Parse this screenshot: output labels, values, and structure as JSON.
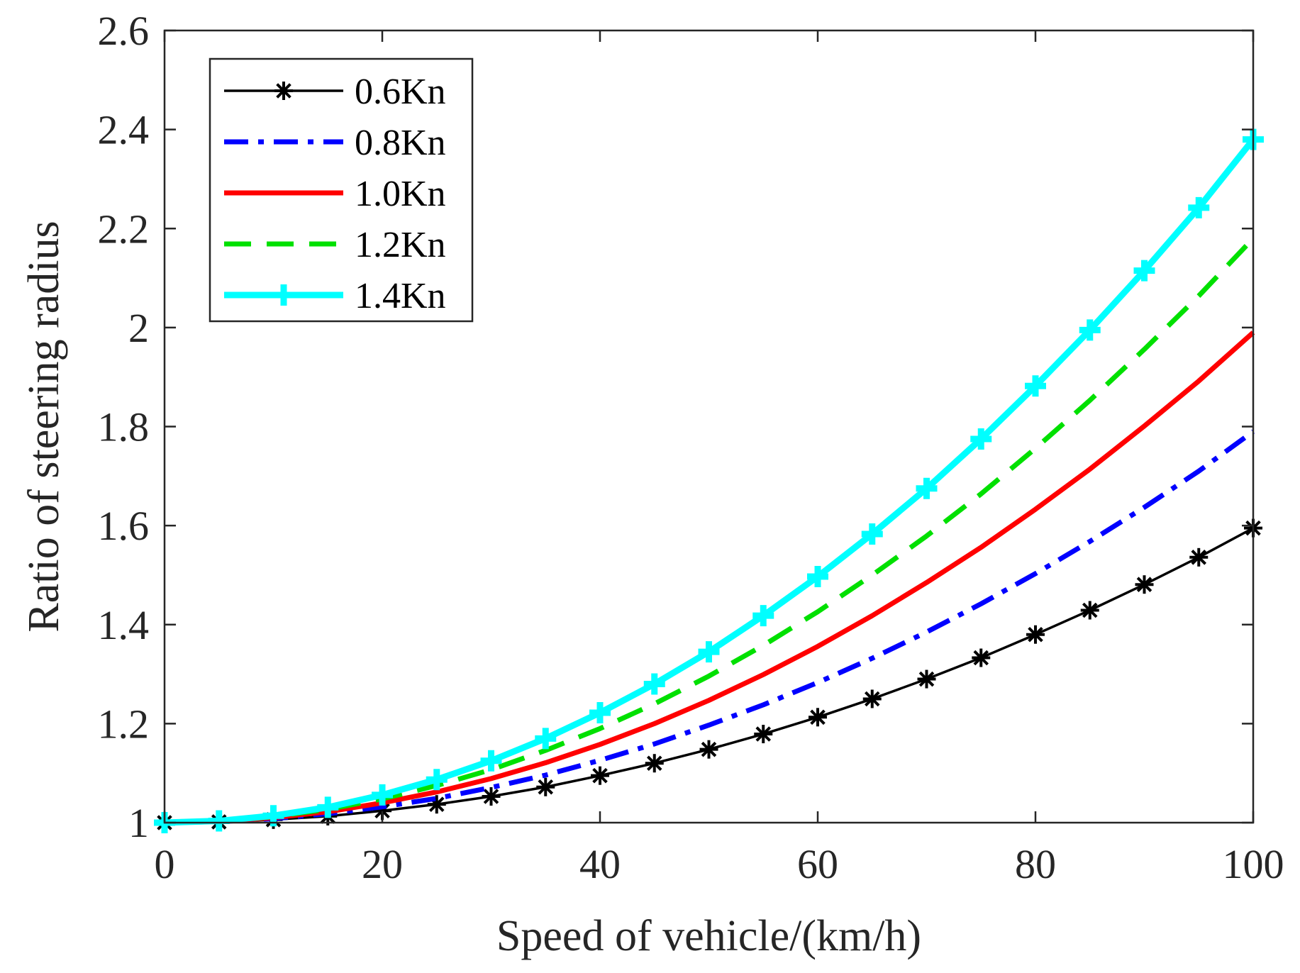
{
  "chart_data": {
    "type": "line",
    "title": "",
    "xlabel": "Speed of vehicle/(km/h)",
    "ylabel": "Ratio of steering radius",
    "xlim": [
      0,
      100
    ],
    "ylim": [
      1,
      2.6
    ],
    "xticks": [
      0,
      20,
      40,
      60,
      80,
      100
    ],
    "xtick_labels": [
      "0",
      "20",
      "40",
      "60",
      "80",
      "100"
    ],
    "yticks": [
      1,
      1.2,
      1.4,
      1.6,
      1.8,
      2,
      2.2,
      2.4,
      2.6
    ],
    "ytick_labels": [
      "1",
      "1.2",
      "1.4",
      "1.6",
      "1.8",
      "2",
      "2.2",
      "2.4",
      "2.6"
    ],
    "grid": false,
    "legend_position": "top-left",
    "x": [
      0,
      5,
      10,
      15,
      20,
      25,
      30,
      35,
      40,
      45,
      50,
      55,
      60,
      65,
      70,
      75,
      80,
      85,
      90,
      95,
      100
    ],
    "series": [
      {
        "name": "0.6Kn",
        "color": "#000000",
        "line_style": "solid",
        "marker": "asterisk",
        "values": [
          1.0,
          1.0015,
          1.006,
          1.013,
          1.024,
          1.037,
          1.053,
          1.072,
          1.095,
          1.12,
          1.148,
          1.179,
          1.213,
          1.25,
          1.29,
          1.333,
          1.38,
          1.429,
          1.481,
          1.536,
          1.595
        ]
      },
      {
        "name": "0.8Kn",
        "color": "#0000ff",
        "line_style": "dashdot",
        "marker": "none",
        "values": [
          1.0,
          1.002,
          1.008,
          1.018,
          1.032,
          1.049,
          1.071,
          1.096,
          1.126,
          1.159,
          1.197,
          1.238,
          1.283,
          1.332,
          1.385,
          1.442,
          1.503,
          1.568,
          1.637,
          1.71,
          1.79
        ]
      },
      {
        "name": "1.0Kn",
        "color": "#ff0000",
        "line_style": "solid",
        "marker": "none",
        "values": [
          1.0,
          1.0025,
          1.01,
          1.022,
          1.04,
          1.062,
          1.089,
          1.121,
          1.158,
          1.2,
          1.247,
          1.299,
          1.356,
          1.418,
          1.485,
          1.556,
          1.633,
          1.714,
          1.801,
          1.892,
          1.99
        ]
      },
      {
        "name": "1.2Kn",
        "color": "#00e000",
        "line_style": "dashed",
        "marker": "none",
        "values": [
          1.0,
          1.003,
          1.012,
          1.027,
          1.048,
          1.075,
          1.107,
          1.146,
          1.19,
          1.24,
          1.296,
          1.358,
          1.426,
          1.5,
          1.579,
          1.664,
          1.756,
          1.853,
          1.956,
          2.064,
          2.18
        ]
      },
      {
        "name": "1.4Kn",
        "color": "#00ffff",
        "line_style": "solid",
        "marker": "plus",
        "values": [
          1.0,
          1.0035,
          1.014,
          1.031,
          1.056,
          1.087,
          1.125,
          1.17,
          1.222,
          1.28,
          1.345,
          1.418,
          1.497,
          1.583,
          1.675,
          1.775,
          1.882,
          1.995,
          2.115,
          2.242,
          2.38
        ]
      }
    ]
  }
}
